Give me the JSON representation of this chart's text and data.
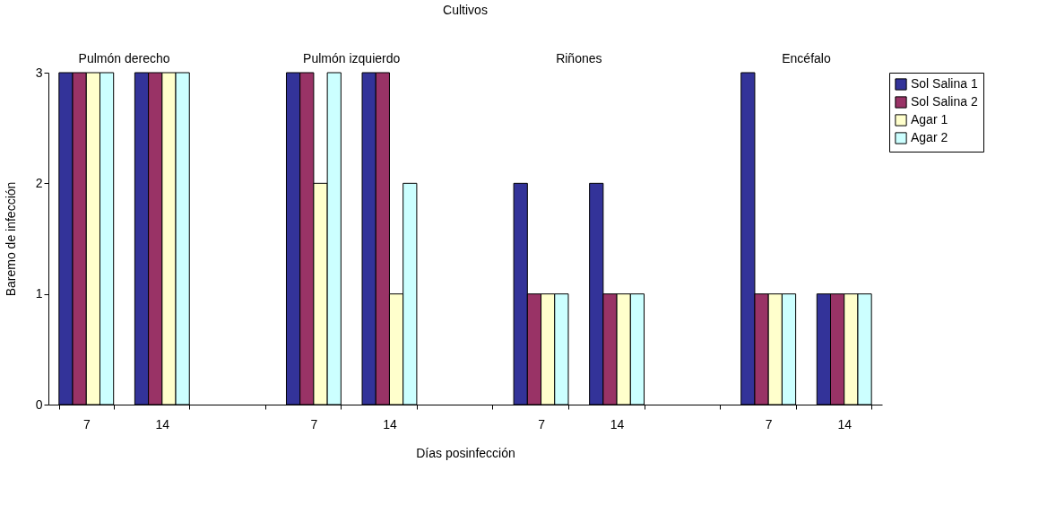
{
  "chart_data": {
    "type": "bar",
    "title": "Cultivos",
    "xlabel": "Días posinfección",
    "ylabel": "Baremo de infección",
    "categories": [
      "7",
      "14",
      null,
      "7",
      "14",
      null,
      "7",
      "14",
      null,
      "7",
      "14"
    ],
    "series": [
      {
        "name": "Sol Salina 1",
        "color": "#333399",
        "values": [
          3,
          3,
          null,
          3,
          3,
          null,
          2,
          2,
          null,
          3,
          1
        ]
      },
      {
        "name": "Sol Salina 2",
        "color": "#993366",
        "values": [
          3,
          3,
          null,
          3,
          3,
          null,
          1,
          1,
          null,
          1,
          1
        ]
      },
      {
        "name": "Agar 1",
        "color": "#ffffcc",
        "values": [
          3,
          3,
          null,
          2,
          1,
          null,
          1,
          1,
          null,
          1,
          1
        ]
      },
      {
        "name": "Agar 2",
        "color": "#ccffff",
        "values": [
          3,
          3,
          null,
          3,
          2,
          null,
          1,
          1,
          null,
          1,
          1
        ]
      }
    ],
    "annotations": [
      "Pulmón derecho",
      "Pulmón izquierdo",
      "Riñones",
      "Encéfalo"
    ],
    "ylim": [
      0,
      3
    ],
    "yticks": [
      0,
      1,
      2,
      3
    ],
    "grid": false,
    "legend": "right"
  }
}
